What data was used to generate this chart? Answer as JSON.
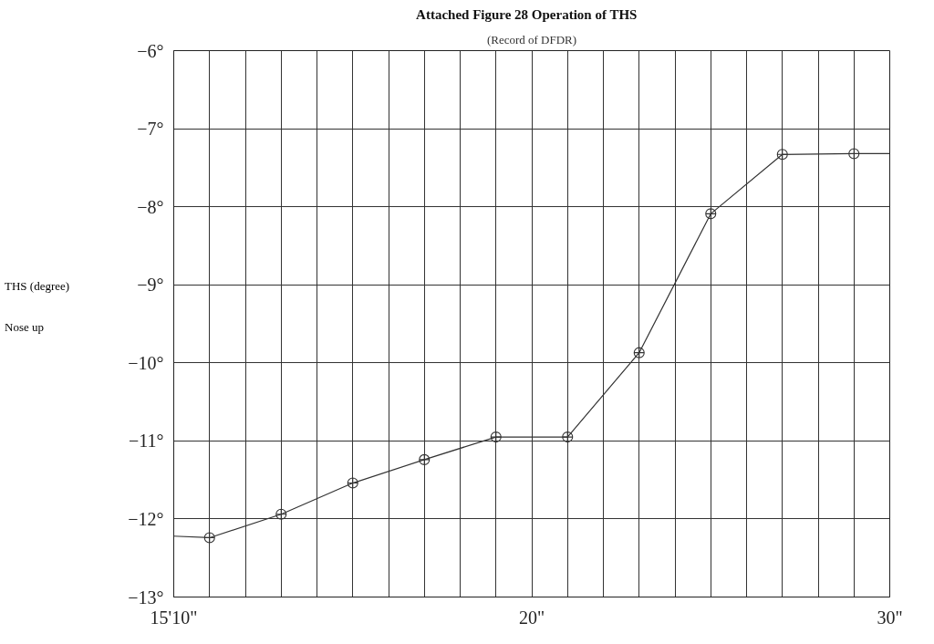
{
  "chart_data": {
    "type": "line",
    "title": "Attached Figure 28    Operation of THS",
    "subtitle": "(Record of DFDR)",
    "ylabel": "THS (degree)",
    "annotations": [
      "Nose up"
    ],
    "series": [
      {
        "color": "#333333",
        "marker": "none",
        "x": [
          10,
          11,
          13,
          15,
          17,
          19,
          21,
          23,
          25,
          27,
          29,
          30
        ],
        "values": [
          -12.22,
          -12.24,
          -11.94,
          -11.54,
          -11.24,
          -10.95,
          -10.95,
          -9.87,
          -8.09,
          -7.33,
          -7.32,
          -7.32
        ]
      },
      {
        "type": "scatter",
        "color": "#333333",
        "marker": "circle",
        "x": [
          11,
          13,
          15,
          17,
          19,
          21,
          23,
          25,
          27,
          29
        ],
        "values": [
          -12.24,
          -11.94,
          -11.54,
          -11.24,
          -10.95,
          -10.95,
          -9.87,
          -8.09,
          -7.33,
          -7.32
        ]
      }
    ],
    "xlim": [
      10,
      30
    ],
    "xticks": [
      {
        "value": 10,
        "label": "15'10\""
      },
      {
        "value": 11,
        "label": null
      },
      {
        "value": 12,
        "label": null
      },
      {
        "value": 13,
        "label": null
      },
      {
        "value": 14,
        "label": null
      },
      {
        "value": 15,
        "label": null
      },
      {
        "value": 16,
        "label": null
      },
      {
        "value": 17,
        "label": null
      },
      {
        "value": 18,
        "label": null
      },
      {
        "value": 19,
        "label": null
      },
      {
        "value": 20,
        "label": "20\""
      },
      {
        "value": 21,
        "label": null
      },
      {
        "value": 22,
        "label": null
      },
      {
        "value": 23,
        "label": null
      },
      {
        "value": 24,
        "label": null
      },
      {
        "value": 25,
        "label": null
      },
      {
        "value": 26,
        "label": null
      },
      {
        "value": 27,
        "label": null
      },
      {
        "value": 28,
        "label": null
      },
      {
        "value": 29,
        "label": null
      },
      {
        "value": 30,
        "label": "30\""
      }
    ],
    "ylim": [
      -13,
      -6
    ],
    "yticks": [
      {
        "value": -13,
        "label": "−13°"
      },
      {
        "value": -12,
        "label": "−12°"
      },
      {
        "value": -11,
        "label": "−11°"
      },
      {
        "value": -10,
        "label": "−10°"
      },
      {
        "value": -9,
        "label": "−9°"
      },
      {
        "value": -8,
        "label": "−8°"
      },
      {
        "value": -7,
        "label": "−7°"
      },
      {
        "value": -6,
        "label": "−6°"
      }
    ],
    "grid": true
  }
}
